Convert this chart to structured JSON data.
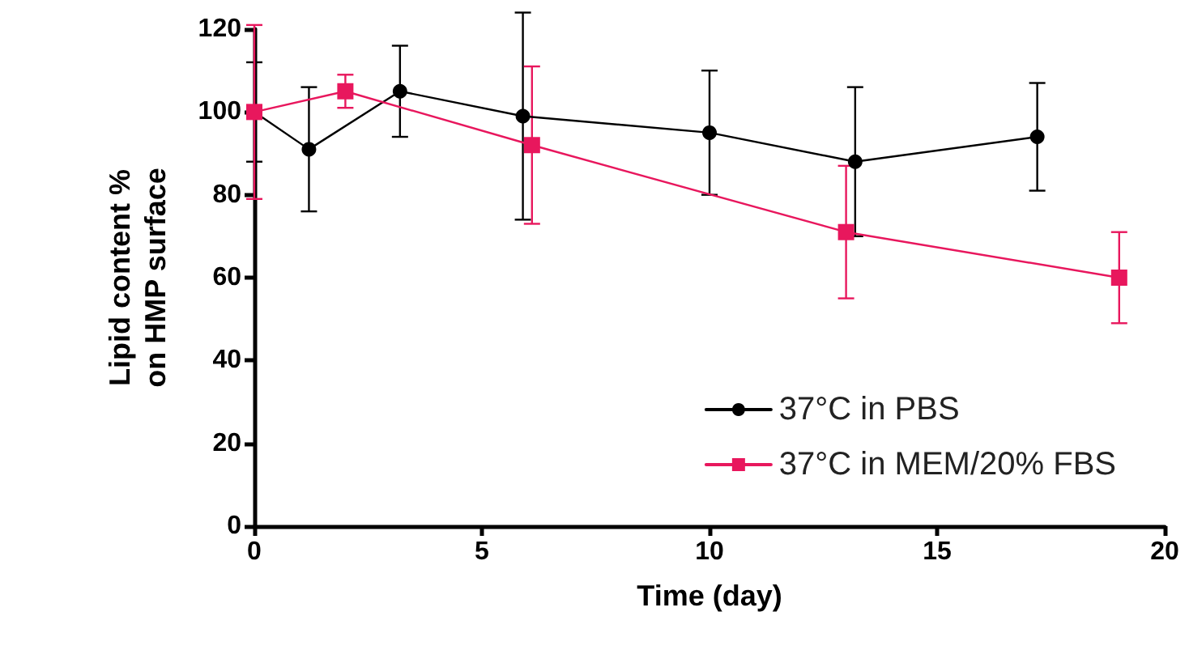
{
  "chart_data": {
    "type": "line",
    "xlabel": "Time (day)",
    "ylabel": "Lipid content %\non HMP surface",
    "xlim": [
      0,
      20
    ],
    "xticks": [
      0,
      5,
      10,
      15,
      20
    ],
    "ylim": [
      0,
      120
    ],
    "yticks": [
      0,
      20,
      40,
      60,
      80,
      100,
      120
    ],
    "grid": false,
    "legend": "bottom right",
    "line_style": "solid",
    "series": [
      {
        "name": "37°C in PBS",
        "color": "#000000",
        "marker": "circle",
        "x": [
          0,
          1.2,
          3.2,
          5.9,
          10,
          13.2,
          17.2
        ],
        "values": [
          100,
          91,
          105,
          99,
          95,
          88,
          94
        ],
        "errors": [
          12,
          15,
          11,
          25,
          15,
          18,
          13
        ]
      },
      {
        "name": "37°C in MEM/20% FBS",
        "color": "#e8175d",
        "marker": "square",
        "x": [
          0,
          2,
          6.1,
          13,
          19
        ],
        "values": [
          100,
          105,
          92,
          71,
          60
        ],
        "errors": [
          21,
          4,
          19,
          16,
          11
        ]
      }
    ]
  }
}
